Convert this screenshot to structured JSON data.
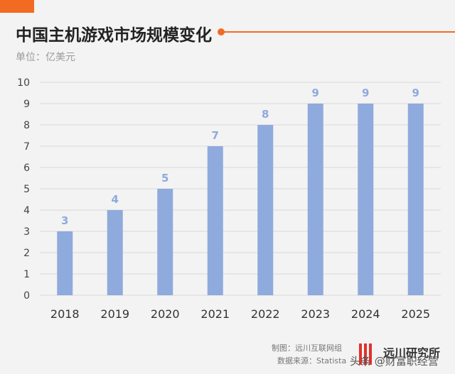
{
  "header": {
    "title": "中国主机游戏市场规模变化",
    "unit": "单位：亿美元"
  },
  "footer": {
    "maker": "制图：远川互联网组",
    "source": "数据来源：Statista",
    "logo_text": "远川研究所",
    "watermark": "头条 @财富职经营"
  },
  "colors": {
    "bar": "#8faadc",
    "accent": "#f26b22",
    "grid": "#d9d9d9",
    "label": "#8faadc"
  },
  "chart_data": {
    "type": "bar",
    "title": "中国主机游戏市场规模变化",
    "ylabel": "单位：亿美元",
    "xlabel": "",
    "categories": [
      "2018",
      "2019",
      "2020",
      "2021",
      "2022",
      "2023",
      "2024",
      "2025"
    ],
    "values": [
      3,
      4,
      5,
      7,
      8,
      9,
      9,
      9
    ],
    "ylim": [
      0,
      10
    ],
    "yticks": [
      0,
      1,
      2,
      3,
      4,
      5,
      6,
      7,
      8,
      9,
      10
    ],
    "grid": true,
    "data_labels": true
  }
}
